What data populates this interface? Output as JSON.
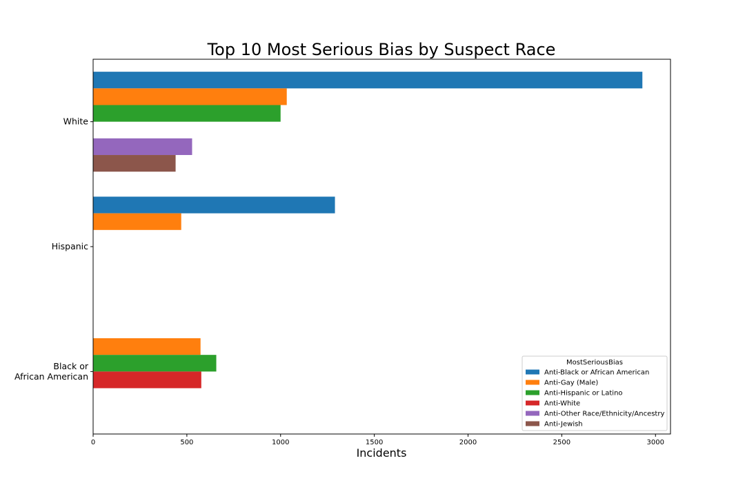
{
  "chart_data": {
    "type": "bar",
    "orientation": "horizontal",
    "title": "Top 10 Most Serious Bias by Suspect Race",
    "xlabel": "Incidents",
    "ylabel": "",
    "xlim": [
      0,
      3080
    ],
    "xticks": [
      0,
      500,
      1000,
      1500,
      2000,
      2500,
      3000
    ],
    "categories": [
      "White",
      "Hispanic",
      "Black or\nAfrican American"
    ],
    "legend": {
      "title": "MostSeriousBias",
      "placement": "lower-right"
    },
    "grid": false,
    "series": [
      {
        "name": "Anti-Black or African American",
        "color": "#1f77b4",
        "values": [
          2930,
          1290,
          null
        ]
      },
      {
        "name": "Anti-Gay (Male)",
        "color": "#ff7f0e",
        "values": [
          1033,
          470,
          573
        ]
      },
      {
        "name": "Anti-Hispanic or Latino",
        "color": "#2ca02c",
        "values": [
          1000,
          null,
          657
        ]
      },
      {
        "name": "Anti-White",
        "color": "#d62728",
        "values": [
          null,
          null,
          577
        ]
      },
      {
        "name": "Anti-Other Race/Ethnicity/Ancestry",
        "color": "#9467bd",
        "values": [
          528,
          null,
          null
        ]
      },
      {
        "name": "Anti-Jewish",
        "color": "#8c564b",
        "values": [
          440,
          null,
          null
        ]
      }
    ]
  }
}
